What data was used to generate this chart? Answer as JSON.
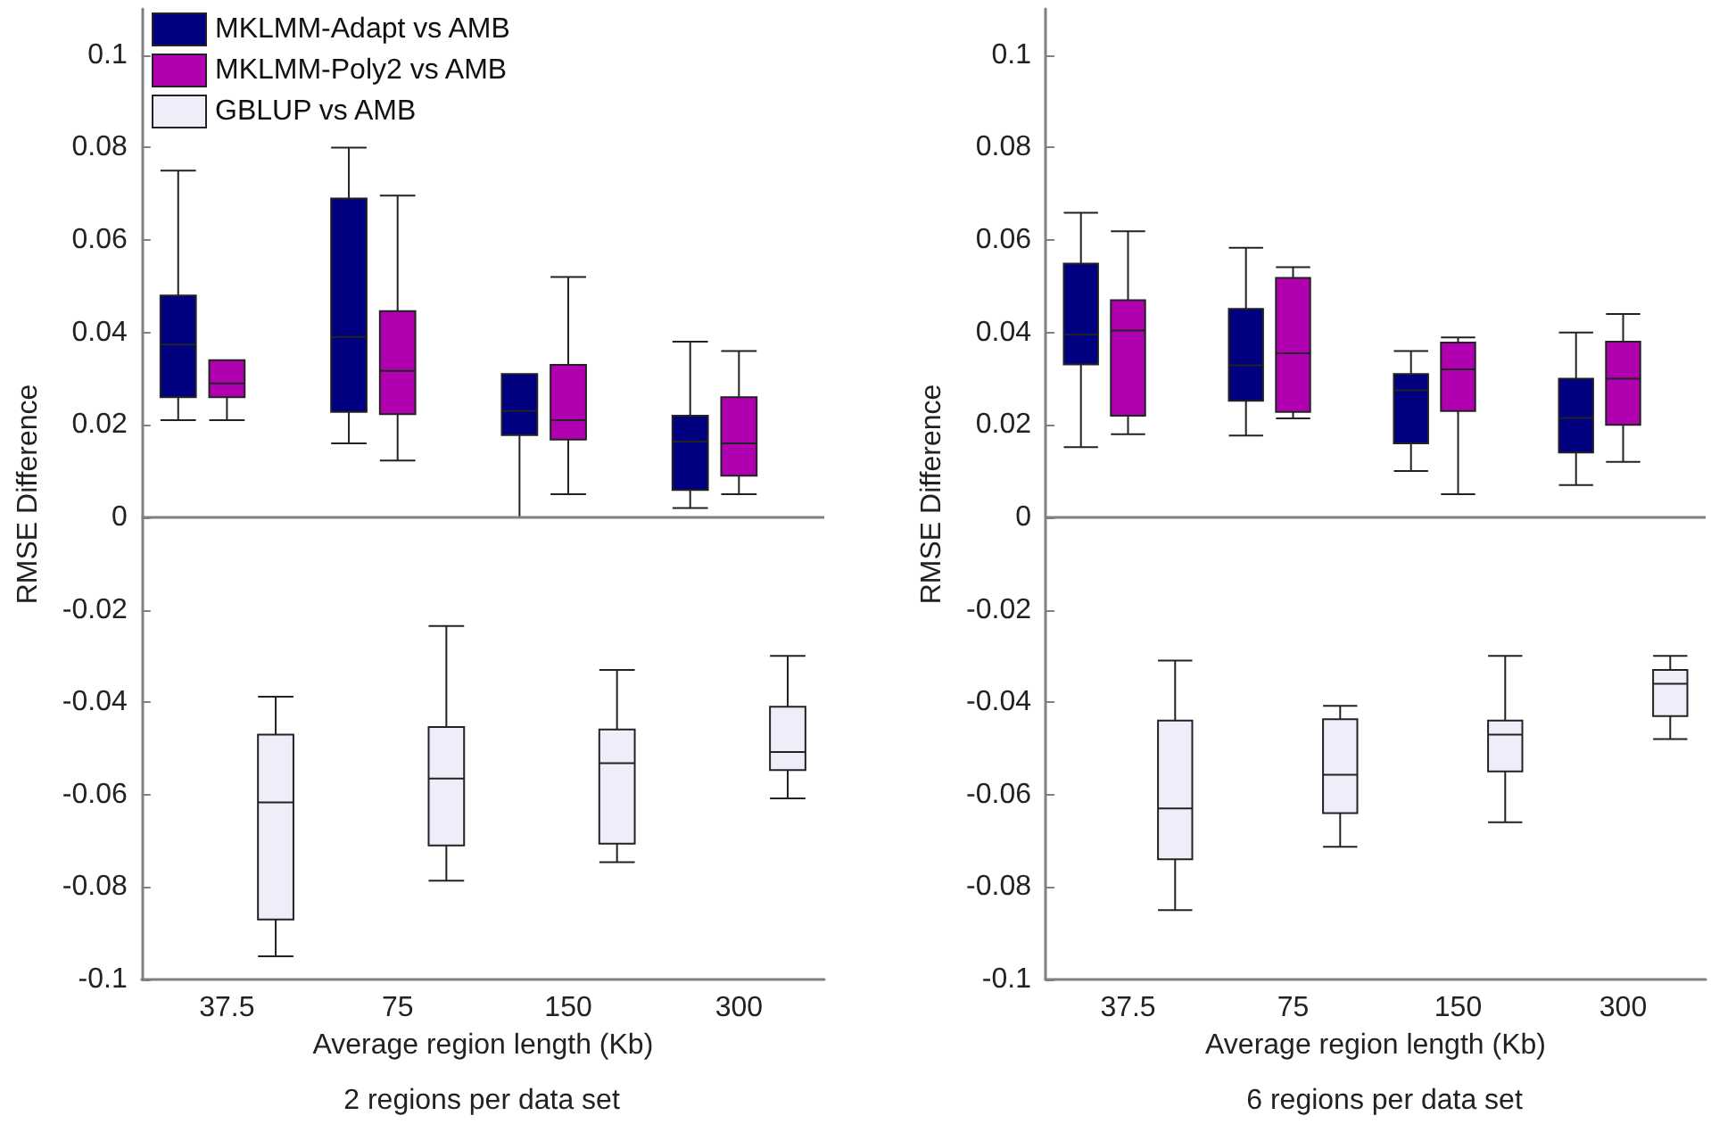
{
  "chart_data": [
    {
      "type": "box",
      "subtitle": "2 regions per data set",
      "xlabel": "Average region length (Kb)",
      "ylabel": "RMSE Difference",
      "categories": [
        "37.5",
        "75",
        "150",
        "300"
      ],
      "ylim": [
        -0.1,
        0.11
      ],
      "yticks": [
        -0.1,
        -0.08,
        -0.06,
        -0.04,
        -0.02,
        0,
        0.02,
        0.04,
        0.06,
        0.08,
        0.1
      ],
      "grid": false,
      "legend": "top left",
      "ref_lines": [
        {
          "axis": "y",
          "value": 0
        }
      ],
      "series": [
        {
          "name": "MKLMM-Adapt vs AMB",
          "color": "#000080",
          "boxes": [
            {
              "low": 0.021,
              "q1": 0.026,
              "median": 0.0374,
              "q3": 0.048,
              "high": 0.075
            },
            {
              "low": 0.016,
              "q1": 0.0228,
              "median": 0.039,
              "q3": 0.069,
              "high": 0.08
            },
            {
              "low": 0,
              "q1": 0.0178,
              "median": 0.023,
              "q3": 0.031,
              "high": 0.031
            },
            {
              "low": 0.002,
              "q1": 0.0059,
              "median": 0.0164,
              "q3": 0.022,
              "high": 0.038
            }
          ]
        },
        {
          "name": "MKLMM-Poly2 vs AMB",
          "color": "#b000b0",
          "boxes": [
            {
              "low": 0.021,
              "q1": 0.026,
              "median": 0.029,
              "q3": 0.034,
              "high": 0.034
            },
            {
              "low": 0.0123,
              "q1": 0.0223,
              "median": 0.0317,
              "q3": 0.0446,
              "high": 0.0696
            },
            {
              "low": 0.005,
              "q1": 0.0168,
              "median": 0.021,
              "q3": 0.033,
              "high": 0.052
            },
            {
              "low": 0.005,
              "q1": 0.009,
              "median": 0.016,
              "q3": 0.026,
              "high": 0.036
            }
          ]
        },
        {
          "name": "GBLUP vs AMB",
          "color": "#eeeefa",
          "boxes": [
            {
              "low": -0.095,
              "q1": -0.087,
              "median": -0.0617,
              "q3": -0.047,
              "high": -0.0388
            },
            {
              "low": -0.0786,
              "q1": -0.071,
              "median": -0.0565,
              "q3": -0.0454,
              "high": -0.0235
            },
            {
              "low": -0.0746,
              "q1": -0.0706,
              "median": -0.0532,
              "q3": -0.0459,
              "high": -0.033
            },
            {
              "low": -0.0608,
              "q1": -0.0547,
              "median": -0.0508,
              "q3": -0.041,
              "high": -0.03
            }
          ]
        }
      ]
    },
    {
      "type": "box",
      "subtitle": "6 regions per data set",
      "xlabel": "Average region length (Kb)",
      "ylabel": "RMSE Difference",
      "categories": [
        "37.5",
        "75",
        "150",
        "300"
      ],
      "ylim": [
        -0.1,
        0.11
      ],
      "yticks": [
        -0.1,
        -0.08,
        -0.06,
        -0.04,
        -0.02,
        0,
        0.02,
        0.04,
        0.06,
        0.08,
        0.1
      ],
      "grid": false,
      "ref_lines": [
        {
          "axis": "y",
          "value": 0
        }
      ],
      "series": [
        {
          "color": "#000080",
          "boxes": [
            {
              "low": 0.0152,
              "q1": 0.0331,
              "median": 0.0395,
              "q3": 0.0549,
              "high": 0.0659
            },
            {
              "low": 0.0177,
              "q1": 0.0252,
              "median": 0.0329,
              "q3": 0.0451,
              "high": 0.0583
            },
            {
              "low": 0.01,
              "q1": 0.016,
              "median": 0.0275,
              "q3": 0.031,
              "high": 0.036
            },
            {
              "low": 0.007,
              "q1": 0.014,
              "median": 0.0215,
              "q3": 0.03,
              "high": 0.04
            }
          ]
        },
        {
          "color": "#b000b0",
          "boxes": [
            {
              "low": 0.018,
              "q1": 0.022,
              "median": 0.0404,
              "q3": 0.047,
              "high": 0.0619
            },
            {
              "low": 0.0214,
              "q1": 0.0228,
              "median": 0.0355,
              "q3": 0.0518,
              "high": 0.0541
            },
            {
              "low": 0.005,
              "q1": 0.023,
              "median": 0.032,
              "q3": 0.0378,
              "high": 0.0389
            },
            {
              "low": 0.012,
              "q1": 0.02,
              "median": 0.03,
              "q3": 0.038,
              "high": 0.044
            }
          ]
        },
        {
          "color": "#eeeefa",
          "boxes": [
            {
              "low": -0.085,
              "q1": -0.074,
              "median": -0.063,
              "q3": -0.044,
              "high": -0.031
            },
            {
              "low": -0.0713,
              "q1": -0.064,
              "median": -0.0557,
              "q3": -0.0437,
              "high": -0.0408
            },
            {
              "low": -0.066,
              "q1": -0.055,
              "median": -0.047,
              "q3": -0.044,
              "high": -0.03
            },
            {
              "low": -0.048,
              "q1": -0.043,
              "median": -0.036,
              "q3": -0.033,
              "high": -0.03
            }
          ]
        }
      ]
    }
  ]
}
